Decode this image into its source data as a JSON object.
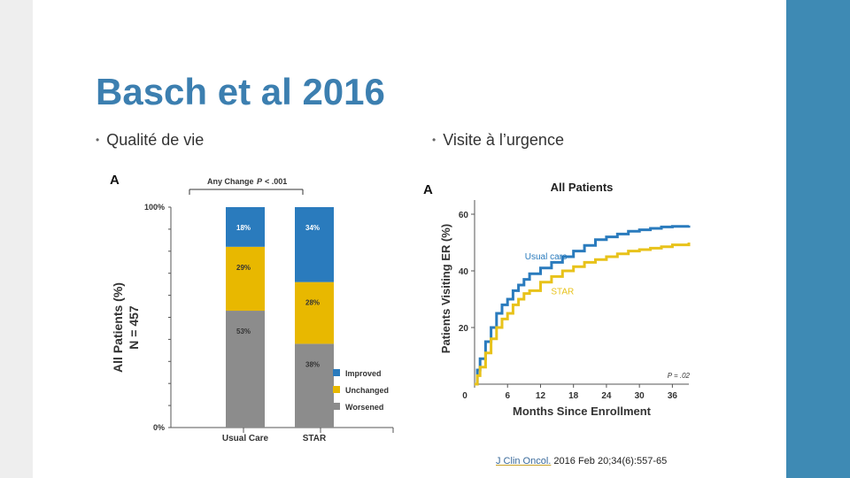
{
  "slide": {
    "title": "Basch et al 2016",
    "bullet_left": "Qualité de vie",
    "bullet_right": "Visite à l’urgence",
    "citation_journal": "J Clin Oncol.",
    "citation_rest": "2016 Feb 20;34(6):557-65"
  },
  "colors": {
    "title": "#3c7fb0",
    "accent_strip": "#3e8ab4",
    "improved": "#2a7bbd",
    "unchanged": "#e8b800",
    "worsened": "#8c8c8c",
    "usual_care_line": "#2a7bbd",
    "star_line": "#e8c21a"
  },
  "chart_data": [
    {
      "type": "bar",
      "panel_label": "A",
      "title": "",
      "annotation": "Any Change",
      "p_label": "P",
      "p_value": "< .001",
      "ylabel": "All Patients (%)",
      "ylabel2": "N = 457",
      "ytick_top": "100%",
      "ytick_bottom": "0%",
      "ylim": [
        0,
        100
      ],
      "stacked": true,
      "categories": [
        "Usual Care",
        "STAR"
      ],
      "series": [
        {
          "name": "Worsened",
          "values": [
            53,
            38
          ],
          "labels": [
            "53%",
            "38%"
          ],
          "color_key": "worsened"
        },
        {
          "name": "Unchanged",
          "values": [
            29,
            28
          ],
          "labels": [
            "29%",
            "28%"
          ],
          "color_key": "unchanged"
        },
        {
          "name": "Improved",
          "values": [
            18,
            34
          ],
          "labels": [
            "18%",
            "34%"
          ],
          "color_key": "improved"
        }
      ],
      "legend": [
        "Improved",
        "Unchanged",
        "Worsened"
      ],
      "legend_position": "bottom-right"
    },
    {
      "type": "line",
      "panel_label": "A",
      "title": "All Patients",
      "xlabel": "Months Since Enrollment",
      "ylabel": "Patients Visiting ER (%)",
      "xticks": [
        0,
        6,
        12,
        18,
        24,
        30,
        36
      ],
      "xtick_labels": [
        "0",
        "6",
        "12",
        "18",
        "24",
        "30",
        "36"
      ],
      "yticks": [
        20,
        40,
        60
      ],
      "ytick_labels": [
        "20",
        "40",
        "60"
      ],
      "xlim": [
        0,
        39
      ],
      "ylim": [
        0,
        65
      ],
      "zero_label": "0",
      "p_text": "P = .02",
      "series": [
        {
          "name": "Usual care",
          "color_key": "usual_care_line",
          "x": [
            0,
            0.5,
            1,
            2,
            3,
            4,
            5,
            6,
            7,
            8,
            9,
            10,
            12,
            14,
            16,
            18,
            20,
            22,
            24,
            26,
            28,
            30,
            32,
            34,
            36,
            39
          ],
          "y": [
            0,
            5,
            9,
            15,
            20,
            25,
            28,
            30,
            33,
            35,
            37,
            39,
            41,
            43,
            45,
            47,
            49,
            51,
            52,
            53,
            54,
            54.5,
            55,
            55.5,
            55.7,
            56
          ]
        },
        {
          "name": "STAR",
          "color_key": "star_line",
          "x": [
            0,
            0.5,
            1,
            2,
            3,
            4,
            5,
            6,
            7,
            8,
            9,
            10,
            12,
            14,
            16,
            18,
            20,
            22,
            24,
            26,
            28,
            30,
            32,
            34,
            36,
            39
          ],
          "y": [
            0,
            3,
            6,
            11,
            16,
            20,
            23,
            25,
            28,
            30,
            32,
            33,
            36,
            38,
            40,
            41.5,
            43,
            44,
            45,
            46,
            47,
            47.5,
            48,
            48.5,
            49.2,
            50
          ]
        }
      ]
    }
  ]
}
